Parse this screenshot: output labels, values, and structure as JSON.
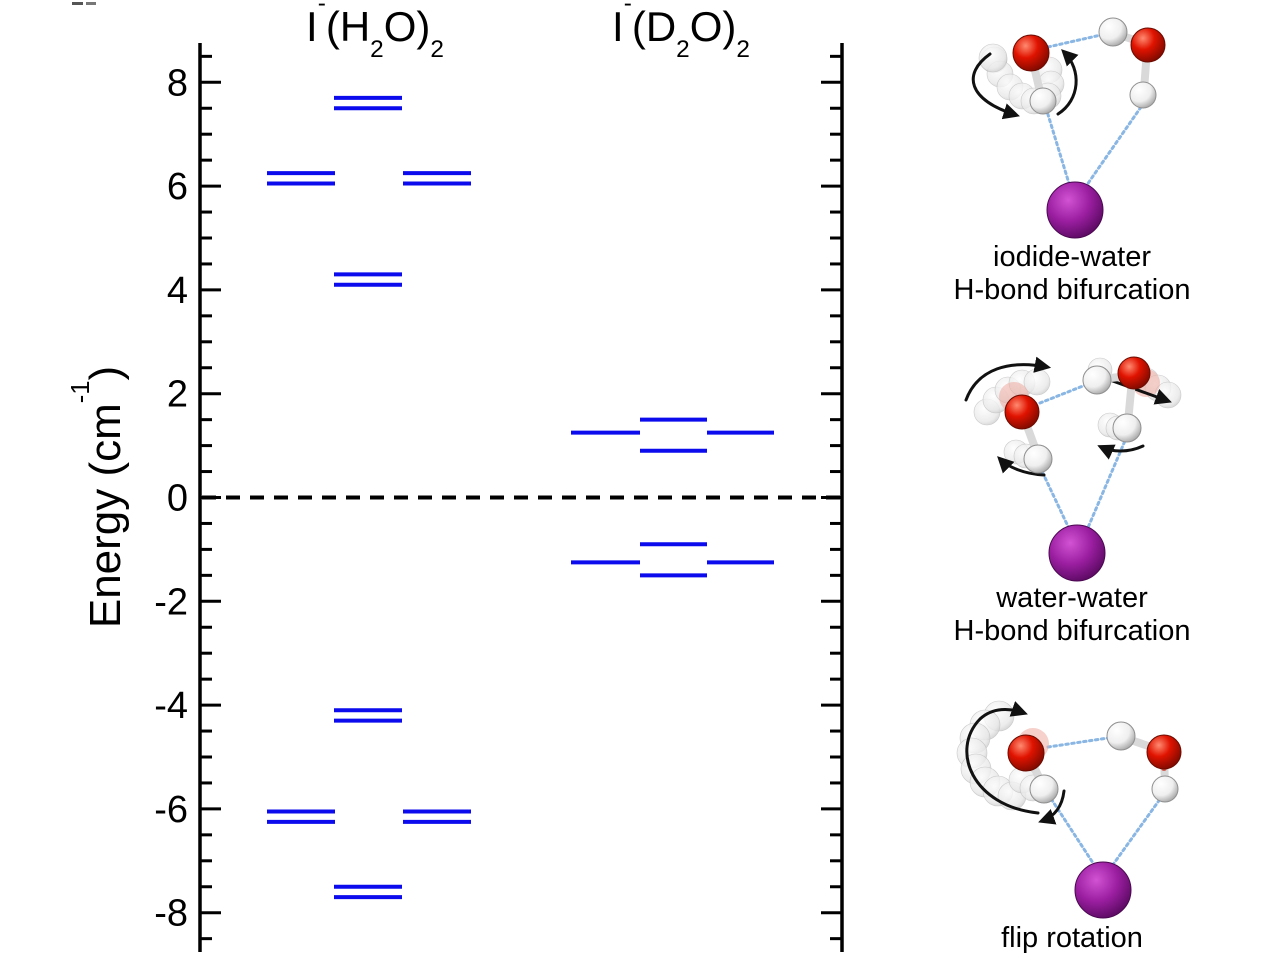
{
  "figure": {
    "column_titles": {
      "h2o": {
        "element": "I",
        "charge": "-",
        "open": "(H",
        "sub_inner": "2",
        "close": "O)",
        "sub_outer": "2"
      },
      "d2o": {
        "element": "I",
        "charge": "-",
        "open": "(D",
        "sub_inner": "2",
        "close": "O)",
        "sub_outer": "2"
      }
    },
    "y_axis": {
      "label_pre": "Energy (cm",
      "label_sup": "-1",
      "label_post": ")"
    },
    "captions": {
      "structure1_line1": "iodide-water",
      "structure1_line2": "H-bond bifurcation",
      "structure2_line1": "water-water",
      "structure2_line2": "H-bond bifurcation",
      "structure3": "flip rotation"
    }
  },
  "colors": {
    "level": "#0b0bee",
    "axis": "#000000",
    "hbond": "#8ab6e4",
    "iodide": "#9c1fa2",
    "oxygen": "#e01300",
    "hydrogen": "#f2f2f2",
    "arrow": "#111111"
  },
  "chart_data": {
    "type": "line",
    "subtype": "energy-level-diagram",
    "title": "",
    "xlabel": "",
    "ylabel": "Energy (cm^-1)",
    "ylim": [
      -8.8,
      8.8
    ],
    "yticks_major": [
      -8,
      -6,
      -4,
      -2,
      0,
      2,
      4,
      6,
      8
    ],
    "ytick_minor_step": 0.5,
    "grid": false,
    "zero_line": "dashed",
    "legend_position": "none",
    "columns": [
      {
        "label": "I-(H2O)2",
        "groups": [
          {
            "slot": "left",
            "levels": [
              6.25,
              6.05,
              -6.05,
              -6.25
            ]
          },
          {
            "slot": "center",
            "levels": [
              7.7,
              7.5,
              4.3,
              4.1,
              -4.1,
              -4.3,
              -7.5,
              -7.7
            ]
          },
          {
            "slot": "right",
            "levels": [
              6.25,
              6.05,
              -6.05,
              -6.25
            ]
          }
        ]
      },
      {
        "label": "I-(D2O)2",
        "groups": [
          {
            "slot": "left",
            "levels": [
              1.25,
              -1.25
            ]
          },
          {
            "slot": "center",
            "levels": [
              1.5,
              0.9,
              -0.9,
              -1.5
            ]
          },
          {
            "slot": "right",
            "levels": [
              1.25,
              -1.25
            ]
          }
        ]
      }
    ],
    "annotations": [
      "iodide-water H-bond bifurcation",
      "water-water H-bond bifurcation",
      "flip rotation"
    ]
  }
}
